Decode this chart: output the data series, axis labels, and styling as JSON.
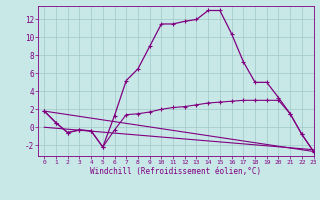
{
  "line1_x": [
    0,
    1,
    2,
    3,
    4,
    5,
    6,
    7,
    8,
    9,
    10,
    11,
    12,
    13,
    14,
    15,
    16,
    17,
    18,
    19,
    20,
    21,
    22,
    23
  ],
  "line1_y": [
    1.8,
    0.5,
    -0.6,
    -0.3,
    -0.4,
    -2.2,
    1.3,
    5.2,
    6.5,
    9.0,
    11.5,
    11.5,
    11.8,
    12.0,
    13.0,
    13.0,
    10.4,
    7.3,
    5.0,
    5.0,
    3.3,
    1.5,
    -0.8,
    -2.7
  ],
  "line2_x": [
    0,
    1,
    2,
    3,
    4,
    5,
    6,
    7,
    8,
    9,
    10,
    11,
    12,
    13,
    14,
    15,
    16,
    17,
    18,
    19,
    20,
    21,
    22,
    23
  ],
  "line2_y": [
    1.8,
    0.5,
    -0.6,
    -0.3,
    -0.4,
    -2.2,
    -0.3,
    1.4,
    1.5,
    1.7,
    2.0,
    2.2,
    2.3,
    2.5,
    2.7,
    2.8,
    2.9,
    3.0,
    3.0,
    3.0,
    3.0,
    1.5,
    -0.8,
    -2.7
  ],
  "line3_x": [
    0,
    23
  ],
  "line3_y": [
    1.8,
    -2.7
  ],
  "line4_x": [
    0,
    23
  ],
  "line4_y": [
    0.0,
    -2.5
  ],
  "color": "#800080",
  "bg_color": "#c8e8e8",
  "grid_color": "#a0c8c8",
  "xlim": [
    -0.5,
    23
  ],
  "ylim": [
    -3.2,
    13.5
  ],
  "yticks": [
    -2,
    0,
    2,
    4,
    6,
    8,
    10,
    12
  ],
  "xtick_labels": [
    "0",
    "1",
    "2",
    "3",
    "4",
    "5",
    "6",
    "7",
    "8",
    "9",
    "10",
    "11",
    "12",
    "13",
    "14",
    "15",
    "16",
    "17",
    "18",
    "19",
    "20",
    "21",
    "22",
    "23"
  ],
  "xlabel": "Windchill (Refroidissement éolien,°C)"
}
